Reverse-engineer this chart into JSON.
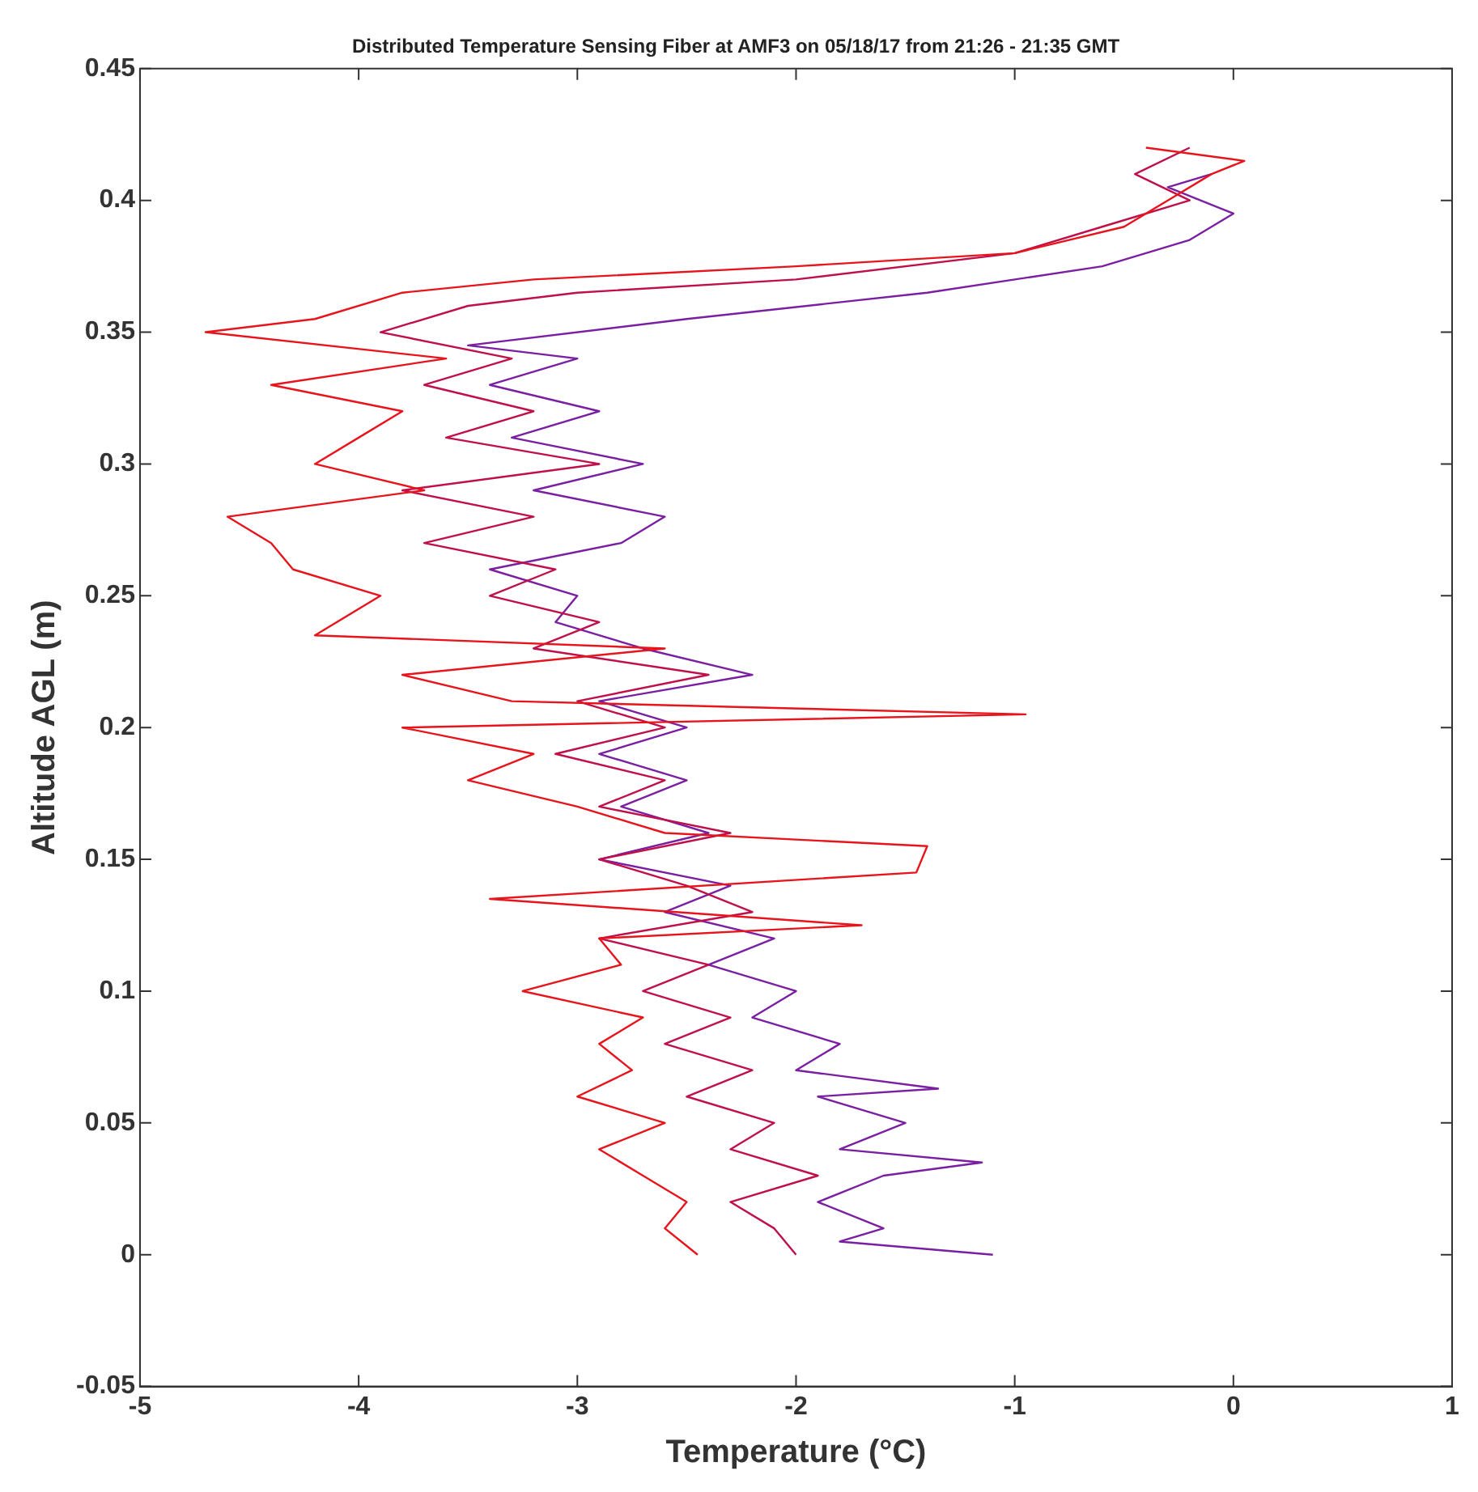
{
  "chart_data": {
    "type": "line",
    "title": "Distributed Temperature Sensing Fiber at AMF3 on 05/18/17 from 21:26 - 21:35 GMT",
    "xlabel": "Temperature (°C)",
    "ylabel": "Altitude AGL (m)",
    "xlim": [
      -5,
      1
    ],
    "xticks": [
      -5,
      -4,
      -3,
      -2,
      -1,
      0,
      1
    ],
    "ylim": [
      -0.05,
      0.45
    ],
    "yticks": [
      -0.05,
      0,
      0.05,
      0.1,
      0.15,
      0.2,
      0.25,
      0.3,
      0.35,
      0.4,
      0.45
    ],
    "legend": false,
    "marker": "none",
    "line_style": "solid",
    "series": [
      {
        "color": "#e8141c",
        "x": [
          -2.45,
          -2.6,
          -2.5,
          -2.7,
          -2.9,
          -2.6,
          -3.0,
          -2.75,
          -2.9,
          -2.7,
          -3.25,
          -2.8,
          -2.9,
          -1.7,
          -3.4,
          -1.45,
          -1.4,
          -2.6,
          -3.0,
          -3.5,
          -3.2,
          -3.8,
          -0.95,
          -3.3,
          -3.8,
          -2.6,
          -4.2,
          -3.9,
          -4.3,
          -4.4,
          -4.6,
          -3.7,
          -4.2,
          -4.0,
          -3.8,
          -4.4,
          -3.6,
          -4.7,
          -4.2,
          -3.8,
          -3.2,
          -2.0,
          -1.0,
          -0.5,
          -0.3,
          -0.1,
          0.05,
          -0.4
        ],
        "values": [
          0,
          0.01,
          0.02,
          0.03,
          0.04,
          0.05,
          0.06,
          0.07,
          0.08,
          0.09,
          0.1,
          0.11,
          0.12,
          0.125,
          0.135,
          0.145,
          0.155,
          0.16,
          0.17,
          0.18,
          0.19,
          0.2,
          0.205,
          0.21,
          0.22,
          0.23,
          0.235,
          0.25,
          0.26,
          0.27,
          0.28,
          0.29,
          0.3,
          0.31,
          0.32,
          0.33,
          0.34,
          0.35,
          0.355,
          0.365,
          0.37,
          0.375,
          0.38,
          0.39,
          0.4,
          0.41,
          0.415,
          0.42
        ]
      },
      {
        "color": "#c0104a",
        "x": [
          -2.0,
          -2.1,
          -2.3,
          -1.9,
          -2.3,
          -2.1,
          -2.5,
          -2.2,
          -2.6,
          -2.3,
          -2.7,
          -2.4,
          -2.9,
          -2.2,
          -2.5,
          -2.9,
          -2.3,
          -2.9,
          -2.6,
          -3.1,
          -2.6,
          -3.0,
          -2.4,
          -3.2,
          -2.9,
          -3.4,
          -3.1,
          -3.7,
          -3.2,
          -3.8,
          -2.9,
          -3.6,
          -3.2,
          -3.7,
          -3.3,
          -3.9,
          -3.5,
          -3.0,
          -2.0,
          -1.0,
          -0.6,
          -0.2,
          -0.45,
          -0.2
        ],
        "values": [
          0,
          0.01,
          0.02,
          0.03,
          0.04,
          0.05,
          0.06,
          0.07,
          0.08,
          0.09,
          0.1,
          0.11,
          0.12,
          0.13,
          0.14,
          0.15,
          0.16,
          0.17,
          0.18,
          0.19,
          0.2,
          0.21,
          0.22,
          0.23,
          0.24,
          0.25,
          0.26,
          0.27,
          0.28,
          0.29,
          0.3,
          0.31,
          0.32,
          0.33,
          0.34,
          0.35,
          0.36,
          0.365,
          0.37,
          0.38,
          0.39,
          0.4,
          0.41,
          0.42
        ]
      },
      {
        "color": "#7a1fa2",
        "x": [
          -1.1,
          -1.8,
          -1.6,
          -1.9,
          -1.6,
          -1.15,
          -1.8,
          -1.5,
          -1.9,
          -1.35,
          -2.0,
          -1.8,
          -2.2,
          -2.0,
          -2.4,
          -2.1,
          -2.6,
          -2.3,
          -2.9,
          -2.4,
          -2.8,
          -2.5,
          -2.9,
          -2.5,
          -2.9,
          -2.2,
          -2.7,
          -3.1,
          -3.0,
          -3.4,
          -2.8,
          -2.6,
          -3.2,
          -2.7,
          -3.3,
          -2.9,
          -3.4,
          -3.0,
          -3.5,
          -2.5,
          -1.4,
          -0.6,
          -0.2,
          0.0,
          -0.3,
          -0.1
        ],
        "values": [
          0,
          0.005,
          0.01,
          0.02,
          0.03,
          0.035,
          0.04,
          0.05,
          0.06,
          0.063,
          0.07,
          0.08,
          0.09,
          0.1,
          0.11,
          0.12,
          0.13,
          0.14,
          0.15,
          0.16,
          0.17,
          0.18,
          0.19,
          0.2,
          0.21,
          0.22,
          0.23,
          0.24,
          0.25,
          0.26,
          0.27,
          0.28,
          0.29,
          0.3,
          0.31,
          0.32,
          0.33,
          0.34,
          0.345,
          0.355,
          0.365,
          0.375,
          0.385,
          0.395,
          0.405,
          0.41
        ]
      }
    ]
  }
}
